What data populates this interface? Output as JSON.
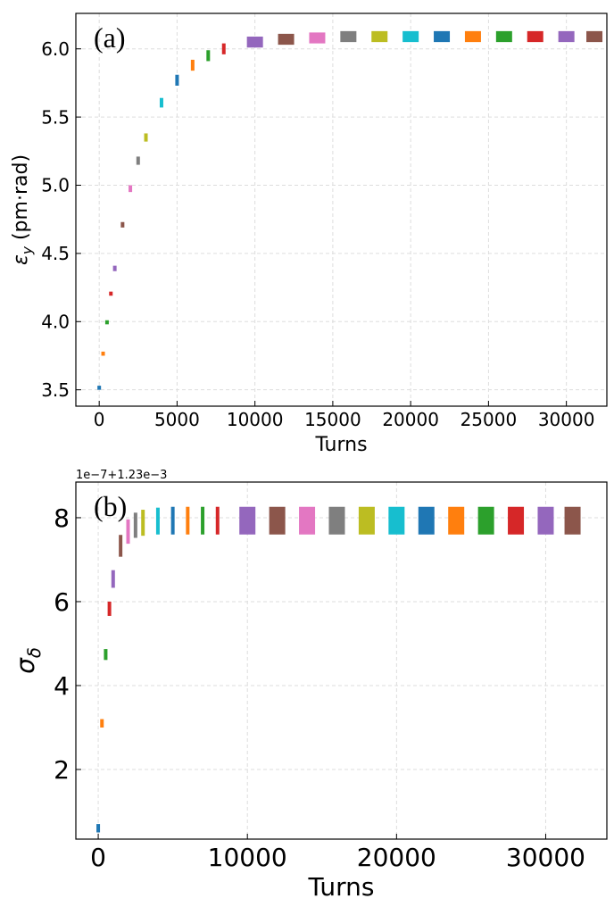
{
  "chart_data": [
    {
      "type": "band",
      "panel_label": "(a)",
      "ylabel_symbol": "ε",
      "ylabel_sub": "y",
      "ylabel_rest": " (pm·rad)",
      "xlabel": "Turns",
      "x": [
        0,
        250,
        500,
        750,
        1000,
        1500,
        2000,
        2500,
        3000,
        4000,
        5000,
        6000,
        7000,
        8000,
        10000,
        12000,
        14000,
        16000,
        18000,
        20000,
        22000,
        24000,
        26000,
        28000,
        30000,
        31800
      ],
      "lower": [
        3.5,
        3.75,
        3.98,
        4.19,
        4.37,
        4.69,
        4.95,
        5.15,
        5.32,
        5.57,
        5.73,
        5.84,
        5.91,
        5.96,
        6.01,
        6.03,
        6.04,
        6.05,
        6.05,
        6.05,
        6.05,
        6.05,
        6.05,
        6.05,
        6.05,
        6.05
      ],
      "upper": [
        3.53,
        3.78,
        4.01,
        4.22,
        4.41,
        4.73,
        5.0,
        5.21,
        5.38,
        5.64,
        5.81,
        5.92,
        5.99,
        6.04,
        6.09,
        6.11,
        6.12,
        6.13,
        6.13,
        6.13,
        6.13,
        6.13,
        6.13,
        6.13,
        6.13,
        6.13
      ],
      "colors": [
        "#1f77b4",
        "#ff7f0e",
        "#2ca02c",
        "#d62728",
        "#9467bd",
        "#8c564b",
        "#e377c2",
        "#7f7f7f",
        "#bcbd22",
        "#17becf"
      ],
      "xlim": [
        -1500,
        32600
      ],
      "ylim": [
        3.38,
        6.26
      ],
      "xticks": [
        0,
        5000,
        10000,
        15000,
        20000,
        25000,
        30000
      ],
      "yticks": [
        {
          "value": 3.5,
          "label": "3.5"
        },
        {
          "value": 4,
          "label": "4.0"
        },
        {
          "value": 4.5,
          "label": "4.5"
        },
        {
          "value": 5,
          "label": "5.0"
        },
        {
          "value": 5.5,
          "label": "5.5"
        },
        {
          "value": 6,
          "label": "6.0"
        }
      ],
      "grid": true
    },
    {
      "type": "band",
      "panel_label": "(b)",
      "offset_label": "1e−7+1.23e−3",
      "ylabel_symbol": "σ",
      "ylabel_sub": "δ",
      "xlabel": "Turns",
      "x": [
        0,
        250,
        500,
        750,
        1000,
        1500,
        2000,
        2500,
        3000,
        4000,
        5000,
        6000,
        7000,
        8000,
        10000,
        12000,
        14000,
        16000,
        18000,
        20000,
        22000,
        24000,
        26000,
        28000,
        30000,
        31800
      ],
      "lower": [
        0.5,
        3.0,
        4.61,
        5.66,
        6.33,
        7.07,
        7.38,
        7.52,
        7.57,
        7.6,
        7.6,
        7.6,
        7.6,
        7.6,
        7.6,
        7.6,
        7.6,
        7.6,
        7.6,
        7.6,
        7.6,
        7.6,
        7.6,
        7.6,
        7.6,
        7.6
      ],
      "upper": [
        0.7,
        3.2,
        4.87,
        6.0,
        6.75,
        7.59,
        7.96,
        8.12,
        8.19,
        8.24,
        8.26,
        8.26,
        8.26,
        8.26,
        8.26,
        8.26,
        8.26,
        8.26,
        8.26,
        8.26,
        8.26,
        8.26,
        8.26,
        8.26,
        8.26,
        8.26
      ],
      "colors": [
        "#1f77b4",
        "#ff7f0e",
        "#2ca02c",
        "#d62728",
        "#9467bd",
        "#8c564b",
        "#e377c2",
        "#7f7f7f",
        "#bcbd22",
        "#17becf"
      ],
      "xlim": [
        -1500,
        34100
      ],
      "ylim": [
        0.34,
        8.85
      ],
      "xticks": [
        0,
        10000,
        20000,
        30000
      ],
      "yticks": [
        2,
        4,
        6,
        8
      ],
      "grid": true
    }
  ]
}
